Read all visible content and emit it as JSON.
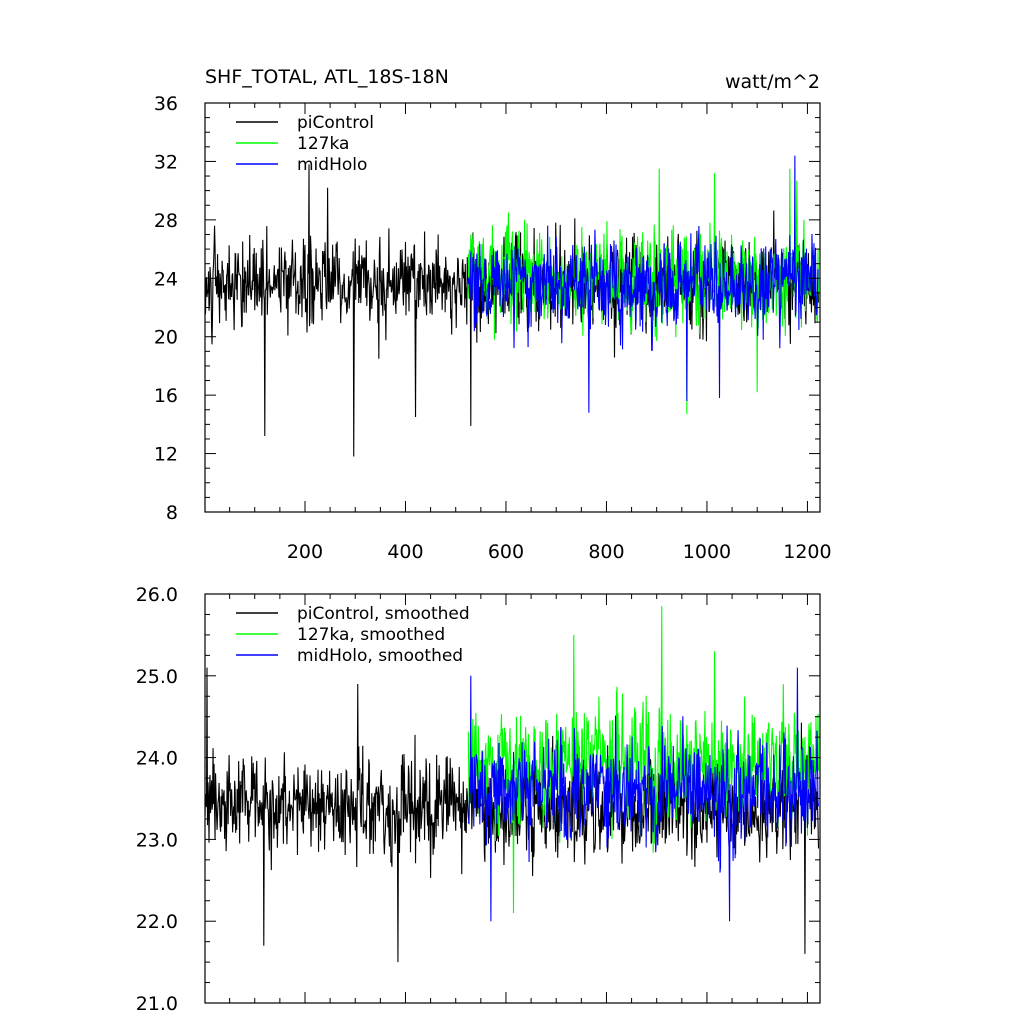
{
  "chart_data": [
    {
      "type": "line",
      "title": "SHF_TOTAL, ATL_18S-18N",
      "units": "watt/m^2",
      "xlabel": "",
      "ylabel": "",
      "xlim": [
        1,
        1225
      ],
      "ylim": [
        8,
        36
      ],
      "x_ticks": [
        200,
        400,
        600,
        800,
        1000,
        1200
      ],
      "y_ticks": [
        8,
        12,
        16,
        20,
        24,
        28,
        32,
        36
      ],
      "grid": false,
      "legend_position": "top-left",
      "series": [
        {
          "name": "piControl",
          "color": "#000000",
          "x_range": [
            1,
            1222
          ],
          "mean": 23.6,
          "amplitude": 2.8,
          "extremes": [
            [
              120,
              13.2
            ],
            [
              297,
              11.8
            ],
            [
              208,
              31.8
            ],
            [
              420,
              14.5
            ],
            [
              530,
              13.9
            ],
            [
              245,
              30.2
            ]
          ]
        },
        {
          "name": "127ka",
          "color": "#00ff00",
          "x_range": [
            525,
            1222
          ],
          "mean": 24.0,
          "amplitude": 3.0,
          "extremes": [
            [
              960,
              14.7
            ],
            [
              905,
              31.5
            ],
            [
              1015,
              31.2
            ],
            [
              1165,
              31.5
            ],
            [
              1100,
              16.2
            ]
          ]
        },
        {
          "name": "midHolo",
          "color": "#0000ff",
          "x_range": [
            525,
            1222
          ],
          "mean": 23.6,
          "amplitude": 2.9,
          "extremes": [
            [
              1175,
              32.4
            ],
            [
              765,
              14.8
            ],
            [
              960,
              15.6
            ],
            [
              1025,
              15.8
            ]
          ]
        }
      ]
    },
    {
      "type": "line",
      "title": "",
      "xlabel": "",
      "ylabel": "",
      "xlim": [
        1,
        1225
      ],
      "ylim": [
        21.0,
        26.0
      ],
      "y_ticks": [
        "21.0",
        "22.0",
        "23.0",
        "24.0",
        "25.0",
        "26.0"
      ],
      "grid": false,
      "legend_position": "top-left",
      "series": [
        {
          "name": "piControl, smoothed",
          "color": "#000000",
          "x_range": [
            1,
            1222
          ],
          "mean": 23.4,
          "amplitude": 0.55,
          "extremes": [
            [
              5,
              25.1
            ],
            [
              118,
              21.7
            ],
            [
              385,
              21.5
            ],
            [
              1195,
              21.6
            ],
            [
              305,
              24.9
            ]
          ]
        },
        {
          "name": "127ka, smoothed",
          "color": "#00ff00",
          "x_range": [
            525,
            1222
          ],
          "mean": 23.9,
          "amplitude": 0.65,
          "extremes": [
            [
              910,
              25.85
            ],
            [
              735,
              25.5
            ],
            [
              615,
              22.1
            ],
            [
              1015,
              25.3
            ]
          ]
        },
        {
          "name": "midHolo, smoothed",
          "color": "#0000ff",
          "x_range": [
            525,
            1222
          ],
          "mean": 23.6,
          "amplitude": 0.6,
          "extremes": [
            [
              530,
              25.0
            ],
            [
              570,
              22.0
            ],
            [
              1180,
              25.1
            ],
            [
              1045,
              22.0
            ]
          ]
        }
      ]
    }
  ]
}
